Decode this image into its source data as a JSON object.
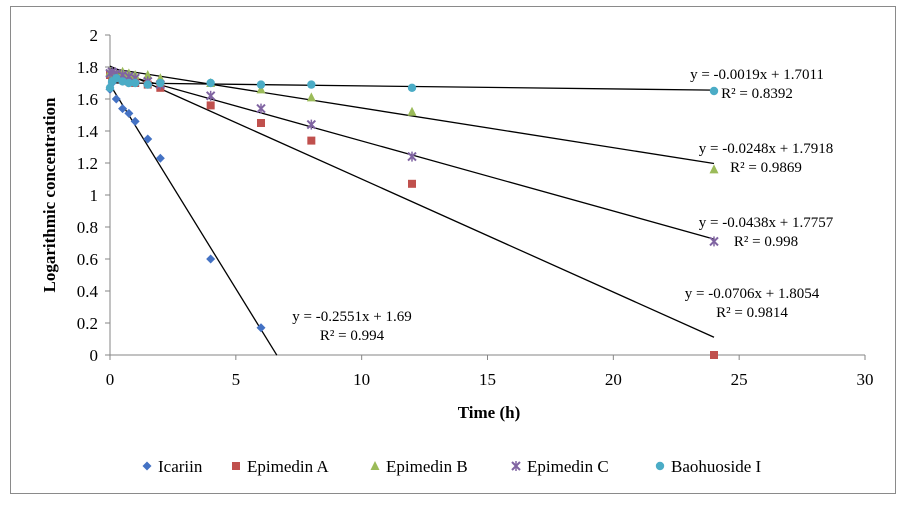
{
  "chart_data": {
    "type": "scatter",
    "title": "",
    "xlabel": "Time (h)",
    "ylabel": "Logarithmic  concentration",
    "xlim": [
      0,
      30
    ],
    "ylim": [
      0,
      2
    ],
    "xticks": [
      0,
      5,
      10,
      15,
      20,
      25,
      30
    ],
    "yticks": [
      0,
      0.2,
      0.4,
      0.6,
      0.8,
      1,
      1.2,
      1.4,
      1.6,
      1.8,
      2
    ],
    "ytick_labels": [
      "0",
      "0.2",
      "0.4",
      "0.6",
      "0.8",
      "1",
      "1.2",
      "1.4",
      "1.6",
      "1.8",
      "2"
    ],
    "xtick_labels": [
      "0",
      "5",
      "10",
      "15",
      "20",
      "25",
      "30"
    ],
    "grid": false,
    "legend_position": "bottom",
    "series": [
      {
        "name": "Icariin",
        "color": "#4472C4",
        "marker": "diamond",
        "x": [
          0,
          0.083,
          0.25,
          0.5,
          0.75,
          1,
          1.5,
          2,
          4,
          6
        ],
        "y": [
          1.66,
          1.7,
          1.6,
          1.54,
          1.51,
          1.46,
          1.35,
          1.23,
          0.6,
          0.17
        ],
        "trend": {
          "slope": -0.2551,
          "intercept": 1.69,
          "x_range": [
            0,
            6.63
          ]
        },
        "equation": "y = -0.2551x + 1.69",
        "r2": "R² = 0.994"
      },
      {
        "name": "Epimedin A",
        "color": "#C0504D",
        "marker": "square",
        "x": [
          0,
          0.083,
          0.25,
          0.5,
          0.75,
          1,
          1.5,
          2,
          4,
          6,
          8,
          12,
          24
        ],
        "y": [
          1.75,
          1.74,
          1.73,
          1.72,
          1.71,
          1.7,
          1.69,
          1.67,
          1.56,
          1.45,
          1.34,
          1.07,
          0.0
        ],
        "trend": {
          "slope": -0.0706,
          "intercept": 1.8054,
          "x_range": [
            0,
            24
          ]
        },
        "equation": "y = -0.0706x + 1.8054",
        "r2": "R² = 0.9814"
      },
      {
        "name": "Epimedin B",
        "color": "#9BBB59",
        "marker": "triangle",
        "x": [
          0,
          0.083,
          0.25,
          0.5,
          0.75,
          1,
          1.5,
          2,
          4,
          6,
          8,
          12,
          24
        ],
        "y": [
          1.77,
          1.76,
          1.76,
          1.77,
          1.76,
          1.75,
          1.75,
          1.73,
          1.7,
          1.66,
          1.61,
          1.52,
          1.16
        ],
        "trend": {
          "slope": -0.0248,
          "intercept": 1.7918,
          "x_range": [
            0,
            24
          ]
        },
        "equation": "y = -0.0248x + 1.7918",
        "r2": "R² = 0.9869"
      },
      {
        "name": "Epimedin C",
        "color": "#8064A2",
        "marker": "star",
        "x": [
          0,
          0.083,
          0.25,
          0.5,
          0.75,
          1,
          1.5,
          2,
          4,
          6,
          8,
          12,
          24
        ],
        "y": [
          1.76,
          1.77,
          1.76,
          1.75,
          1.74,
          1.73,
          1.71,
          1.69,
          1.62,
          1.54,
          1.44,
          1.24,
          0.71
        ],
        "trend": {
          "slope": -0.0438,
          "intercept": 1.7757,
          "x_range": [
            0,
            24
          ]
        },
        "equation": "y = -0.0438x + 1.7757",
        "r2": "R² = 0.998"
      },
      {
        "name": "Baohuoside I",
        "color": "#4BACC6",
        "marker": "circle",
        "x": [
          0,
          0.083,
          0.25,
          0.5,
          0.75,
          1,
          1.5,
          2,
          4,
          6,
          8,
          12,
          24
        ],
        "y": [
          1.67,
          1.71,
          1.73,
          1.71,
          1.7,
          1.7,
          1.69,
          1.7,
          1.7,
          1.69,
          1.69,
          1.67,
          1.65
        ],
        "trend": {
          "slope": -0.0019,
          "intercept": 1.7011,
          "x_range": [
            0,
            24
          ]
        },
        "equation": "y = -0.0019x + 1.7011",
        "r2": "R² = 0.8392"
      }
    ]
  }
}
